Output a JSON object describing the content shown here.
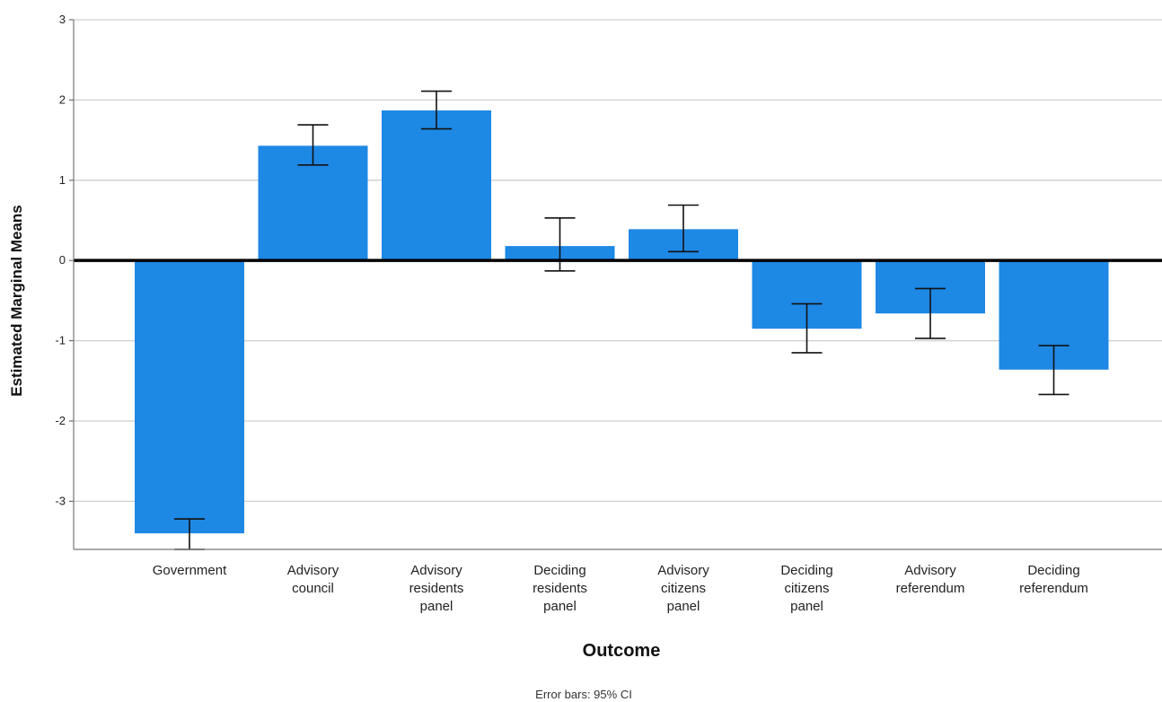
{
  "chart_data": {
    "type": "bar",
    "xlabel": "Outcome",
    "ylabel": "Estimated Marginal Means",
    "note": "Error bars: 95% CI",
    "ylim": [
      -3.6,
      3
    ],
    "yticks": [
      3,
      2,
      1,
      0,
      -1,
      -2,
      -3
    ],
    "grid": true,
    "bar_color": "#1e88e5",
    "categories": [
      [
        "Government"
      ],
      [
        "Advisory",
        "council"
      ],
      [
        "Advisory",
        "residents",
        "panel"
      ],
      [
        "Deciding",
        "residents",
        "panel"
      ],
      [
        "Advisory",
        "citizens",
        "panel"
      ],
      [
        "Deciding",
        "citizens",
        "panel"
      ],
      [
        "Advisory",
        "referendum"
      ],
      [
        "Deciding",
        "referendum"
      ]
    ],
    "values": [
      -3.4,
      1.43,
      1.87,
      0.18,
      0.39,
      -0.85,
      -0.66,
      -1.36
    ],
    "ci_lower": [
      -3.6,
      1.19,
      1.64,
      -0.13,
      0.11,
      -1.15,
      -0.97,
      -1.67
    ],
    "ci_upper": [
      -3.22,
      1.69,
      2.11,
      0.53,
      0.69,
      -0.54,
      -0.35,
      -1.06
    ]
  }
}
